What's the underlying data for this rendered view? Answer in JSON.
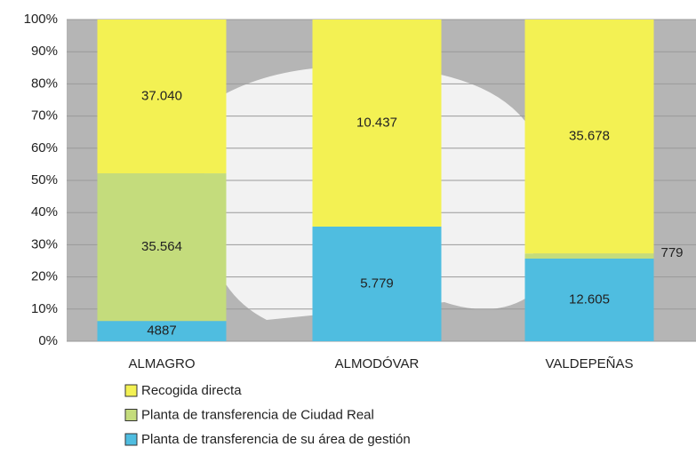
{
  "chart_data": {
    "type": "bar",
    "stack": "percent",
    "categories": [
      "ALMAGRO",
      "ALMODÓVAR",
      "VALDEPEÑAS"
    ],
    "series": [
      {
        "name": "Recogida directa",
        "color": "#f3f153",
        "values": [
          37040,
          10437,
          35678
        ],
        "value_labels": [
          "37.040",
          "10.437",
          "35.678"
        ]
      },
      {
        "name": "Planta de transferencia de Ciudad Real",
        "color": "#c4dc7c",
        "values": [
          35564,
          null,
          779
        ],
        "value_labels": [
          "35.564",
          null,
          "779"
        ]
      },
      {
        "name": "Planta de transferencia de su área de gestión",
        "color": "#4fbde0",
        "values": [
          4887,
          5779,
          12605
        ],
        "value_labels": [
          "4887",
          "5.779",
          "12.605"
        ]
      }
    ],
    "ylim": [
      0,
      100
    ],
    "yticks": [
      {
        "value": 0,
        "label": "0%"
      },
      {
        "value": 10,
        "label": "10%"
      },
      {
        "value": 20,
        "label": "20%"
      },
      {
        "value": 30,
        "label": "30%"
      },
      {
        "value": 40,
        "label": "40%"
      },
      {
        "value": 50,
        "label": "50%"
      },
      {
        "value": 60,
        "label": "60%"
      },
      {
        "value": 70,
        "label": "70%"
      },
      {
        "value": 80,
        "label": "80%"
      },
      {
        "value": 90,
        "label": "90%"
      },
      {
        "value": 100,
        "label": "100%"
      }
    ],
    "grid": true
  }
}
